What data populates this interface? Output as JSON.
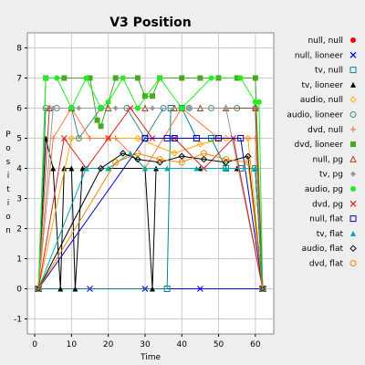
{
  "chart_data": {
    "type": "line",
    "title": "V3 Position",
    "xlabel": "Time",
    "ylabel": "Position",
    "xlim": [
      -2,
      65
    ],
    "ylim": [
      -1.5,
      8.5
    ],
    "xticks": [
      0,
      10,
      20,
      30,
      40,
      50,
      60
    ],
    "yticks": [
      -1,
      0,
      1,
      2,
      3,
      4,
      5,
      6,
      7,
      8
    ],
    "grid": true,
    "legend_position": "right",
    "series": [
      {
        "name": "null, null",
        "color": "#ff0000",
        "marker": "circle-filled",
        "points": [
          [
            1,
            0
          ],
          [
            62,
            0
          ]
        ]
      },
      {
        "name": "null, lioneer",
        "color": "#0000ff",
        "marker": "x",
        "points": [
          [
            1,
            0
          ],
          [
            15,
            0
          ],
          [
            30,
            0
          ],
          [
            45,
            0
          ],
          [
            62,
            0
          ]
        ]
      },
      {
        "name": "tv, null",
        "color": "#008888",
        "marker": "square-open",
        "points": [
          [
            1,
            0
          ],
          [
            36,
            0
          ],
          [
            37,
            6
          ],
          [
            40,
            6
          ],
          [
            44,
            5
          ],
          [
            48,
            5
          ],
          [
            52,
            4
          ],
          [
            56,
            4
          ],
          [
            60,
            4
          ],
          [
            62,
            0
          ]
        ]
      },
      {
        "name": "tv, lioneer",
        "color": "#000000",
        "marker": "triangle-filled",
        "points": [
          [
            1,
            0
          ],
          [
            3,
            5
          ],
          [
            5,
            4
          ],
          [
            7,
            0
          ],
          [
            8,
            4
          ],
          [
            10,
            4
          ],
          [
            11,
            0
          ],
          [
            13,
            4
          ],
          [
            20,
            4
          ],
          [
            30,
            4
          ],
          [
            32,
            0
          ],
          [
            33,
            4
          ],
          [
            45,
            4
          ],
          [
            55,
            4
          ],
          [
            60,
            4
          ],
          [
            62,
            0
          ]
        ]
      },
      {
        "name": "audio, null",
        "color": "#ffaa00",
        "marker": "diamond-open",
        "points": [
          [
            1,
            0
          ],
          [
            10,
            5
          ],
          [
            20,
            5
          ],
          [
            28,
            5
          ],
          [
            38,
            4.5
          ],
          [
            45,
            4.8
          ],
          [
            52,
            5
          ],
          [
            58,
            5
          ],
          [
            62,
            0
          ]
        ]
      },
      {
        "name": "audio, lioneer",
        "color": "#448888",
        "marker": "circle-open",
        "points": [
          [
            1,
            0
          ],
          [
            3,
            6
          ],
          [
            6,
            6
          ],
          [
            10,
            6
          ],
          [
            12,
            5
          ],
          [
            18,
            6
          ],
          [
            25,
            6
          ],
          [
            30,
            5
          ],
          [
            35,
            6
          ],
          [
            42,
            6
          ],
          [
            48,
            6
          ],
          [
            55,
            6
          ],
          [
            60,
            6
          ],
          [
            62,
            0
          ]
        ]
      },
      {
        "name": "dvd, null",
        "color": "#ff7744",
        "marker": "plus",
        "points": [
          [
            1,
            0
          ],
          [
            5,
            5
          ],
          [
            10,
            6
          ],
          [
            15,
            5
          ],
          [
            22,
            5
          ],
          [
            30,
            4
          ],
          [
            40,
            6
          ],
          [
            50,
            5
          ],
          [
            60,
            5
          ],
          [
            62,
            0
          ]
        ]
      },
      {
        "name": "dvd, lioneer",
        "color": "#44aa22",
        "marker": "square-filled",
        "points": [
          [
            1,
            0
          ],
          [
            3,
            7
          ],
          [
            8,
            7
          ],
          [
            15,
            7
          ],
          [
            17,
            5.6
          ],
          [
            18,
            5.4
          ],
          [
            22,
            7
          ],
          [
            28,
            7
          ],
          [
            30,
            6.4
          ],
          [
            32,
            6.4
          ],
          [
            34,
            7
          ],
          [
            40,
            7
          ],
          [
            45,
            7
          ],
          [
            50,
            7
          ],
          [
            55,
            7
          ],
          [
            60,
            7
          ],
          [
            62,
            0
          ]
        ]
      },
      {
        "name": "null, pg",
        "color": "#aa4422",
        "marker": "triangle-open",
        "points": [
          [
            1,
            0
          ],
          [
            4,
            6
          ],
          [
            10,
            6
          ],
          [
            20,
            6
          ],
          [
            30,
            6
          ],
          [
            38,
            6
          ],
          [
            45,
            6
          ],
          [
            52,
            6
          ],
          [
            60,
            6
          ],
          [
            62,
            0
          ]
        ]
      },
      {
        "name": "tv, pg",
        "color": "#999999",
        "marker": "diamond-filled",
        "points": [
          [
            1,
            0
          ],
          [
            5,
            6
          ],
          [
            12,
            6
          ],
          [
            22,
            6
          ],
          [
            32,
            6
          ],
          [
            42,
            6
          ],
          [
            52,
            6
          ],
          [
            62,
            0
          ]
        ]
      },
      {
        "name": "audio, pg",
        "color": "#22ee22",
        "marker": "circle-filled",
        "points": [
          [
            1,
            0
          ],
          [
            3,
            7
          ],
          [
            6,
            7
          ],
          [
            10,
            6
          ],
          [
            14,
            7
          ],
          [
            18,
            6
          ],
          [
            20,
            6.2
          ],
          [
            24,
            7
          ],
          [
            28,
            6
          ],
          [
            34,
            7
          ],
          [
            40,
            6
          ],
          [
            48,
            7
          ],
          [
            56,
            7
          ],
          [
            60,
            6.2
          ],
          [
            61,
            6.2
          ],
          [
            62,
            0
          ]
        ]
      },
      {
        "name": "dvd, pg",
        "color": "#dd2222",
        "marker": "x",
        "points": [
          [
            1,
            0
          ],
          [
            8,
            5
          ],
          [
            14,
            4
          ],
          [
            20,
            5
          ],
          [
            26,
            6
          ],
          [
            32,
            5
          ],
          [
            38,
            5
          ],
          [
            46,
            4
          ],
          [
            54,
            5
          ],
          [
            62,
            0
          ]
        ]
      },
      {
        "name": "null, flat",
        "color": "#0000cc",
        "marker": "square-open",
        "points": [
          [
            1,
            0
          ],
          [
            30,
            5
          ],
          [
            36,
            5
          ],
          [
            38,
            5
          ],
          [
            44,
            5
          ],
          [
            50,
            5
          ],
          [
            56,
            5
          ],
          [
            62,
            0
          ]
        ]
      },
      {
        "name": "tv, flat",
        "color": "#00aaaa",
        "marker": "triangle-filled",
        "points": [
          [
            1,
            0
          ],
          [
            14,
            4
          ],
          [
            20,
            4
          ],
          [
            26,
            4.5
          ],
          [
            30,
            4
          ],
          [
            36,
            4
          ],
          [
            44,
            4
          ],
          [
            52,
            4
          ],
          [
            60,
            4
          ],
          [
            62,
            0
          ]
        ]
      },
      {
        "name": "audio, flat",
        "color": "#000000",
        "marker": "diamond-open",
        "points": [
          [
            1,
            0
          ],
          [
            18,
            4
          ],
          [
            24,
            4.5
          ],
          [
            28,
            4.3
          ],
          [
            34,
            4.2
          ],
          [
            40,
            4.4
          ],
          [
            46,
            4.3
          ],
          [
            52,
            4.2
          ],
          [
            58,
            4.4
          ],
          [
            62,
            0
          ]
        ]
      },
      {
        "name": "dvd, flat",
        "color": "#ee8800",
        "marker": "circle-open",
        "points": [
          [
            1,
            0
          ],
          [
            22,
            4.2
          ],
          [
            28,
            4.5
          ],
          [
            34,
            4.3
          ],
          [
            40,
            4.2
          ],
          [
            46,
            4.5
          ],
          [
            52,
            4.3
          ],
          [
            58,
            4.2
          ],
          [
            62,
            0
          ]
        ]
      }
    ]
  }
}
